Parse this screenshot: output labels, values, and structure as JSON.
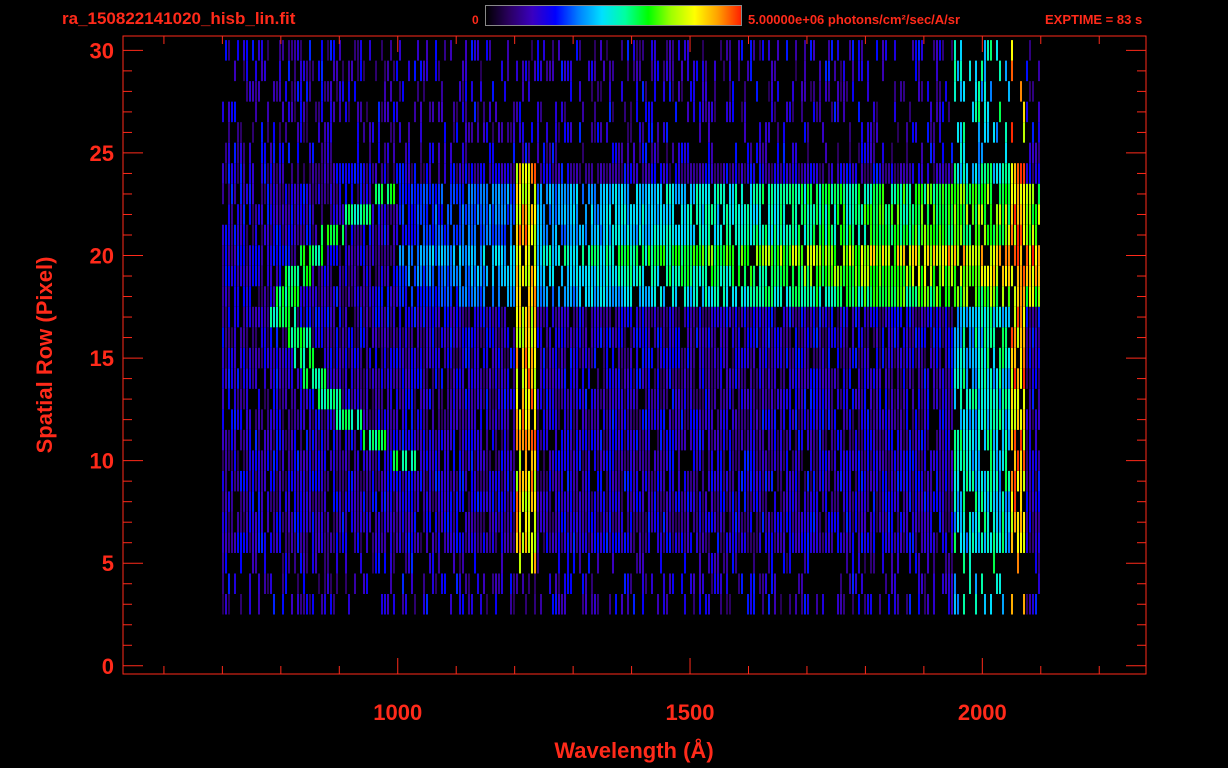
{
  "header": {
    "file_title": "ra_150822141020_hisb_lin.fit",
    "colorbar_min": "0",
    "colorbar_max": "5.00000e+06 photons/cm²/sec/A/sr",
    "exptime": "EXPTIME = 83 s",
    "colorbar_colors": [
      "#000000",
      "#2a0060",
      "#3a00c0",
      "#0000ff",
      "#0080ff",
      "#00e0ff",
      "#00ffa0",
      "#00ff00",
      "#a0ff00",
      "#ffff00",
      "#ffa000",
      "#ff2000"
    ]
  },
  "chart_data": {
    "type": "heatmap",
    "title": "ra_150822141020_hisb_lin.fit",
    "xlabel": "Wavelength (Å)",
    "ylabel": "Spatial Row (Pixel)",
    "xlim": [
      530,
      2280
    ],
    "ylim": [
      -0.4,
      30.7
    ],
    "x_ticks": [
      1000,
      1500,
      2000
    ],
    "x_tick_labels": [
      "1000",
      "1500",
      "2000"
    ],
    "y_ticks": [
      0,
      5,
      10,
      15,
      20,
      25,
      30
    ],
    "y_tick_labels": [
      "0",
      "5",
      "10",
      "15",
      "20",
      "25",
      "30"
    ],
    "grid": false,
    "axis_color": "#ff2a1a",
    "colorscale": {
      "min": 0,
      "max": 5000000,
      "units": "photons/cm²/sec/A/sr",
      "colors": [
        "#000000",
        "#2a0060",
        "#3a00c0",
        "#0000ff",
        "#0080ff",
        "#00e0ff",
        "#00ffa0",
        "#00ff00",
        "#a0ff00",
        "#ffff00",
        "#ffa000",
        "#ff2000"
      ]
    },
    "detector_extent": {
      "wavelength": [
        700,
        2100
      ],
      "rows": [
        3,
        30
      ]
    },
    "features": [
      {
        "name": "Lyman-alpha emission",
        "wavelength": 1216,
        "rows": [
          5,
          24
        ],
        "relative_intensity": 0.9
      },
      {
        "name": "bright spectral band",
        "wavelength": [
          1000,
          2060
        ],
        "rows": [
          18,
          23
        ],
        "relative_intensity_range": [
          0.35,
          0.92
        ]
      },
      {
        "name": "curved arc feature",
        "wavelength": [
          780,
          1000
        ],
        "rows": [
          10,
          23
        ],
        "relative_intensity": 0.6
      },
      {
        "name": "long-wavelength edge",
        "wavelength": 2060,
        "rows": [
          3,
          30
        ],
        "relative_intensity": 0.95
      }
    ]
  }
}
